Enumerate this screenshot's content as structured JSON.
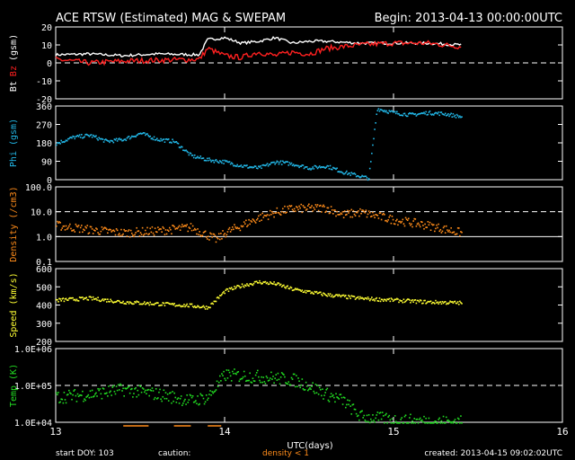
{
  "header": {
    "title": "ACE RTSW (Estimated) MAG & SWEPAM",
    "begin": "Begin: 2013-04-13 00:00:00UTC"
  },
  "footer": {
    "start_doy": "start DOY: 103",
    "caution": "caution:",
    "density_note": "density < 1",
    "created": "created: 2013-04-15 09:02:02UTC"
  },
  "x_axis": {
    "label": "UTC(days)",
    "ticks": [
      "13",
      "14",
      "15",
      "16"
    ],
    "range": [
      13,
      16
    ]
  },
  "colors": {
    "bt": "#ffffff",
    "bz": "#ff2020",
    "phi": "#22b8e8",
    "density": "#ff8c1a",
    "speed": "#ffff33",
    "temp": "#22dd22",
    "caution": "#ff8c1a"
  },
  "chart_data": [
    {
      "type": "line",
      "panel": "mag",
      "ylabel_parts": [
        "Bt",
        "Bz",
        "(gsm)"
      ],
      "ylim": [
        -20,
        20
      ],
      "yticks": [
        "20",
        "10",
        "0",
        "-10",
        "-20"
      ],
      "reference_lines": [
        0
      ],
      "series": [
        {
          "name": "Bt",
          "x": [
            13.0,
            13.2,
            13.4,
            13.6,
            13.85,
            13.9,
            14.0,
            14.1,
            14.2,
            14.3,
            14.4,
            14.5,
            14.6,
            14.8,
            15.0,
            15.2,
            15.4
          ],
          "y": [
            4.5,
            5,
            4,
            5,
            4.5,
            13,
            14,
            11,
            12,
            14,
            11,
            12,
            12,
            11,
            11,
            11,
            10
          ]
        },
        {
          "name": "Bz",
          "x": [
            13.0,
            13.2,
            13.4,
            13.6,
            13.85,
            13.9,
            14.0,
            14.1,
            14.2,
            14.3,
            14.4,
            14.5,
            14.6,
            14.8,
            15.0,
            15.2,
            15.4
          ],
          "y": [
            2,
            0,
            1,
            1.5,
            2,
            8,
            4,
            3,
            6,
            4,
            6,
            5,
            8,
            10,
            11,
            11,
            9
          ]
        }
      ]
    },
    {
      "type": "scatter",
      "panel": "phi",
      "ylabel": "Phi (gsm)",
      "ylim": [
        0,
        360
      ],
      "yticks": [
        "360",
        "270",
        "180",
        "90",
        "0"
      ],
      "series": [
        {
          "name": "Phi",
          "x": [
            13.0,
            13.1,
            13.2,
            13.3,
            13.4,
            13.5,
            13.6,
            13.7,
            13.8,
            13.9,
            14.0,
            14.1,
            14.2,
            14.3,
            14.4,
            14.5,
            14.6,
            14.7,
            14.8,
            14.85,
            14.9,
            15.0,
            15.1,
            15.2,
            15.3,
            15.4
          ],
          "y": [
            180,
            210,
            220,
            190,
            200,
            230,
            200,
            190,
            120,
            100,
            90,
            70,
            60,
            90,
            80,
            60,
            70,
            40,
            20,
            10,
            350,
            330,
            320,
            330,
            325,
            310
          ]
        }
      ]
    },
    {
      "type": "scatter",
      "panel": "density",
      "ylabel": "Density (/cm3)",
      "yscale": "log",
      "ylim": [
        0.1,
        100
      ],
      "yticks": [
        "100.0",
        "10.0",
        "1.0",
        "0.1"
      ],
      "reference_lines": [
        10,
        1
      ],
      "series": [
        {
          "name": "Density",
          "x": [
            13.0,
            13.2,
            13.4,
            13.6,
            13.8,
            13.95,
            14.0,
            14.1,
            14.2,
            14.3,
            14.4,
            14.6,
            14.7,
            14.8,
            15.0,
            15.2,
            15.4
          ],
          "y": [
            3,
            2,
            1.5,
            1.8,
            2.5,
            0.8,
            1.5,
            3,
            6,
            10,
            14,
            15,
            8,
            10,
            5,
            3,
            1.5
          ]
        }
      ]
    },
    {
      "type": "scatter",
      "panel": "speed",
      "ylabel": "Speed (km/s)",
      "ylim": [
        200,
        600
      ],
      "yticks": [
        "600",
        "500",
        "400",
        "300",
        "200"
      ],
      "series": [
        {
          "name": "Speed",
          "x": [
            13.0,
            13.2,
            13.4,
            13.6,
            13.8,
            13.9,
            14.0,
            14.1,
            14.2,
            14.3,
            14.4,
            14.6,
            14.8,
            15.0,
            15.2,
            15.4
          ],
          "y": [
            430,
            440,
            420,
            410,
            400,
            390,
            480,
            510,
            530,
            520,
            490,
            460,
            440,
            430,
            420,
            415
          ]
        }
      ]
    },
    {
      "type": "scatter",
      "panel": "temp",
      "ylabel": "Temp (K)",
      "yscale": "log",
      "ylim": [
        10000,
        1000000
      ],
      "yticks": [
        "1.0E+06",
        "1.0E+05",
        "1.0E+04"
      ],
      "reference_lines": [
        100000
      ],
      "series": [
        {
          "name": "Temp",
          "x": [
            13.0,
            13.2,
            13.4,
            13.6,
            13.8,
            13.9,
            14.0,
            14.2,
            14.4,
            14.5,
            14.6,
            14.7,
            14.8,
            15.0,
            15.2,
            15.4
          ],
          "y": [
            50000,
            60000,
            80000,
            60000,
            40000,
            50000,
            200000,
            180000,
            150000,
            100000,
            60000,
            40000,
            15000,
            12000,
            11000,
            10500
          ]
        }
      ]
    }
  ]
}
